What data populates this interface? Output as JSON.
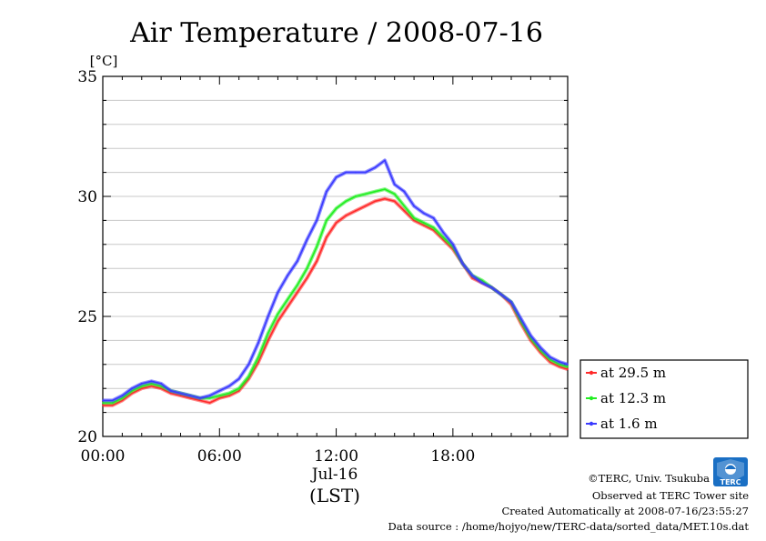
{
  "chart_data": {
    "type": "line",
    "title": "Air Temperature / 2008-07-16",
    "ylabel": "[°C]",
    "ylim": [
      20,
      35
    ],
    "xlim": [
      0,
      23.9
    ],
    "yticks": [
      20,
      25,
      30,
      35
    ],
    "ytick_labels": [
      "20",
      "25",
      "30",
      "35"
    ],
    "y_minor_step": 1,
    "xticks": [
      0,
      6,
      12,
      18
    ],
    "xtick_labels": [
      "00:00",
      "06:00",
      "12:00",
      "18:00"
    ],
    "x_date_label": "Jul-16",
    "x_tz_label": "(LST)",
    "grid": true,
    "legend_position": "right",
    "series": [
      {
        "name": "at 29.5 m",
        "color": "#ff2a2a",
        "x": [
          0,
          0.5,
          1,
          1.5,
          2,
          2.5,
          3,
          3.5,
          4,
          4.5,
          5,
          5.5,
          6,
          6.5,
          7,
          7.5,
          8,
          8.5,
          9,
          9.5,
          10,
          10.5,
          11,
          11.5,
          12,
          12.5,
          13,
          13.5,
          14,
          14.5,
          15,
          15.5,
          16,
          16.5,
          17,
          17.5,
          18,
          18.5,
          19,
          19.5,
          20,
          20.5,
          21,
          21.5,
          22,
          22.5,
          23,
          23.5,
          23.9
        ],
        "y": [
          21.3,
          21.3,
          21.5,
          21.8,
          22.0,
          22.1,
          22.0,
          21.8,
          21.7,
          21.6,
          21.5,
          21.4,
          21.6,
          21.7,
          21.9,
          22.4,
          23.1,
          24.0,
          24.8,
          25.4,
          26.0,
          26.6,
          27.3,
          28.3,
          28.9,
          29.2,
          29.4,
          29.6,
          29.8,
          29.9,
          29.8,
          29.4,
          29.0,
          28.8,
          28.6,
          28.2,
          27.8,
          27.2,
          26.6,
          26.4,
          26.2,
          25.9,
          25.5,
          24.7,
          24.0,
          23.5,
          23.1,
          22.9,
          22.8
        ]
      },
      {
        "name": "at 12.3 m",
        "color": "#22ee22",
        "x": [
          0,
          0.5,
          1,
          1.5,
          2,
          2.5,
          3,
          3.5,
          4,
          4.5,
          5,
          5.5,
          6,
          6.5,
          7,
          7.5,
          8,
          8.5,
          9,
          9.5,
          10,
          10.5,
          11,
          11.5,
          12,
          12.5,
          13,
          13.5,
          14,
          14.5,
          15,
          15.5,
          16,
          16.5,
          17,
          17.5,
          18,
          18.5,
          19,
          19.5,
          20,
          20.5,
          21,
          21.5,
          22,
          22.5,
          23,
          23.5,
          23.9
        ],
        "y": [
          21.4,
          21.4,
          21.6,
          21.9,
          22.1,
          22.2,
          22.1,
          21.9,
          21.8,
          21.7,
          21.6,
          21.6,
          21.7,
          21.8,
          22.0,
          22.5,
          23.3,
          24.3,
          25.1,
          25.7,
          26.3,
          27.0,
          27.9,
          29.0,
          29.5,
          29.8,
          30.0,
          30.1,
          30.2,
          30.3,
          30.1,
          29.6,
          29.1,
          28.9,
          28.7,
          28.3,
          27.9,
          27.2,
          26.7,
          26.5,
          26.2,
          25.9,
          25.6,
          24.8,
          24.1,
          23.6,
          23.2,
          23.0,
          22.9
        ]
      },
      {
        "name": "at 1.6 m",
        "color": "#3a3aff",
        "x": [
          0,
          0.5,
          1,
          1.5,
          2,
          2.5,
          3,
          3.5,
          4,
          4.5,
          5,
          5.5,
          6,
          6.5,
          7,
          7.5,
          8,
          8.5,
          9,
          9.5,
          10,
          10.5,
          11,
          11.5,
          12,
          12.5,
          13,
          13.5,
          14,
          14.5,
          15,
          15.5,
          16,
          16.5,
          17,
          17.5,
          18,
          18.5,
          19,
          19.5,
          20,
          20.5,
          21,
          21.5,
          22,
          22.5,
          23,
          23.5,
          23.9
        ],
        "y": [
          21.5,
          21.5,
          21.7,
          22.0,
          22.2,
          22.3,
          22.2,
          21.9,
          21.8,
          21.7,
          21.6,
          21.7,
          21.9,
          22.1,
          22.4,
          23.0,
          23.9,
          25.0,
          26.0,
          26.7,
          27.3,
          28.2,
          29.0,
          30.2,
          30.8,
          31.0,
          31.0,
          31.0,
          31.2,
          31.5,
          30.5,
          30.2,
          29.6,
          29.3,
          29.1,
          28.5,
          28.0,
          27.2,
          26.7,
          26.4,
          26.2,
          25.9,
          25.6,
          24.9,
          24.2,
          23.7,
          23.3,
          23.1,
          23.0
        ]
      }
    ]
  },
  "credits": {
    "copyright": "©TERC, Univ. Tsukuba",
    "observed": "Observed at TERC Tower site",
    "created": "Created Automatically at 2008-07-16/23:55:27",
    "source": "Data source : /home/hojyo/new/TERC-data/sorted_data/MET.10s.dat"
  },
  "logo": {
    "text": "TERC",
    "color": "#1a6fc4"
  }
}
